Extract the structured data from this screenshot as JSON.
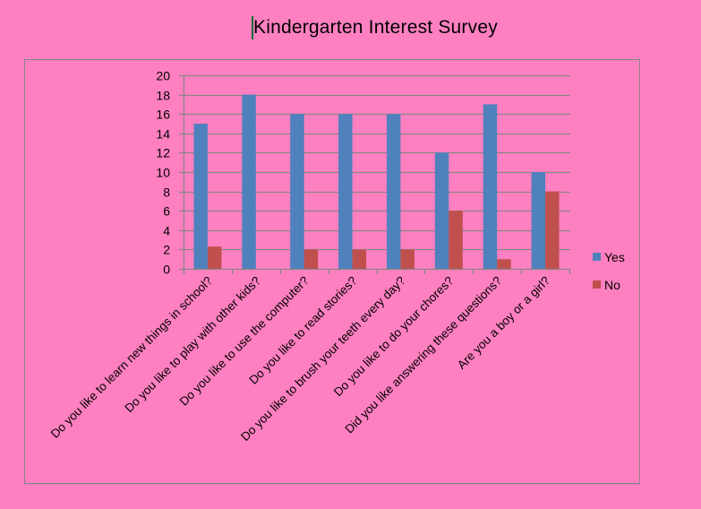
{
  "title": "Kindergarten Interest Survey",
  "colors": {
    "background": "#FF80C0",
    "yes": "#4F81BD",
    "no": "#C0504D",
    "grid": "#868686",
    "cursor": "#0A6E3A"
  },
  "chart_data": {
    "type": "bar",
    "title": "Kindergarten Interest Survey",
    "xlabel": "",
    "ylabel": "",
    "ylim": [
      0,
      20
    ],
    "yticks": [
      0,
      2,
      4,
      6,
      8,
      10,
      12,
      14,
      16,
      18,
      20
    ],
    "grid": true,
    "legend_position": "right",
    "categories": [
      "Do you like to learn new things in school?",
      "Do you like to play with other kids?",
      "Do you like to use the computer?",
      "Do you like to read stories?",
      "Do you like to brush your teeth every day?",
      "Do you like to do your chores?",
      "Did you like answering these questions?",
      "Are you a boy or a girl?"
    ],
    "series": [
      {
        "name": "Yes",
        "color": "#4F81BD",
        "values": [
          15,
          18,
          16,
          16,
          16,
          12,
          17,
          10
        ]
      },
      {
        "name": "No",
        "color": "#C0504D",
        "values": [
          2.3,
          0,
          2,
          2,
          2,
          6,
          1,
          8
        ]
      }
    ]
  }
}
